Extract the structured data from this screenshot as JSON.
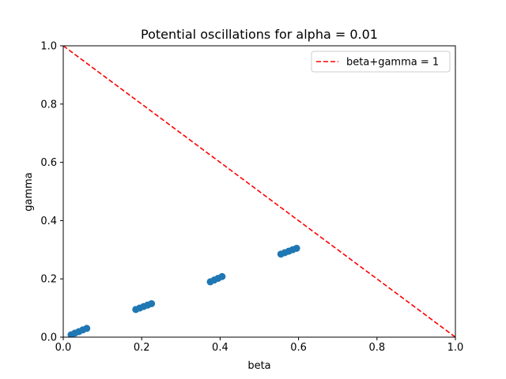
{
  "chart_data": {
    "type": "scatter",
    "title": "Potential oscillations for alpha = 0.01",
    "xlabel": "beta",
    "ylabel": "gamma",
    "xlim": [
      0.0,
      1.0
    ],
    "ylim": [
      0.0,
      1.0
    ],
    "xticks": [
      "0.0",
      "0.2",
      "0.4",
      "0.6",
      "0.8",
      "1.0"
    ],
    "yticks": [
      "0.0",
      "0.2",
      "0.4",
      "0.6",
      "0.8",
      "1.0"
    ],
    "grid": false,
    "legend_position": "top-right",
    "colors": {
      "points": "#1f77b4",
      "line": "#ff0000"
    },
    "series": [
      {
        "type": "scatter",
        "x": [
          0.02,
          0.03,
          0.04,
          0.05,
          0.06,
          0.185,
          0.195,
          0.205,
          0.215,
          0.225,
          0.375,
          0.385,
          0.395,
          0.405,
          0.555,
          0.565,
          0.575,
          0.585,
          0.595
        ],
        "y": [
          0.008,
          0.014,
          0.019,
          0.025,
          0.03,
          0.095,
          0.1,
          0.105,
          0.11,
          0.115,
          0.19,
          0.196,
          0.202,
          0.208,
          0.285,
          0.29,
          0.295,
          0.3,
          0.305
        ]
      },
      {
        "name": "beta+gamma = 1",
        "type": "line",
        "style": "dashed",
        "x": [
          0.0,
          1.0
        ],
        "y": [
          1.0,
          0.0
        ]
      }
    ]
  }
}
